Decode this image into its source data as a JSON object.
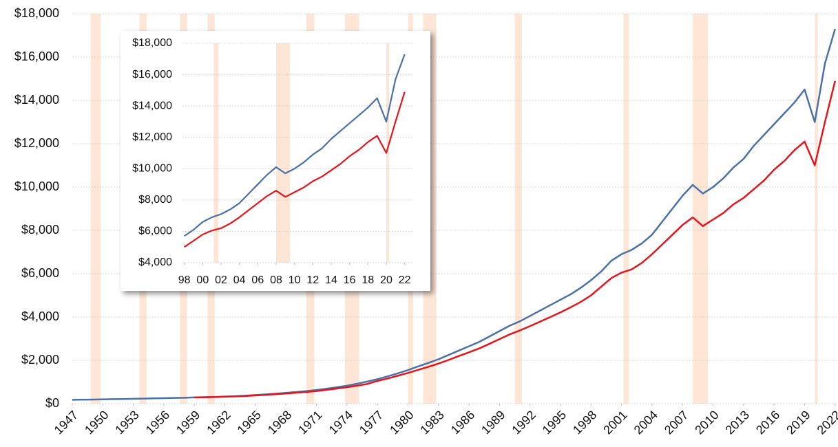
{
  "chart_data": [
    {
      "type": "line",
      "x": [
        1947,
        1948,
        1949,
        1950,
        1951,
        1952,
        1953,
        1954,
        1955,
        1956,
        1957,
        1958,
        1959,
        1960,
        1961,
        1962,
        1963,
        1964,
        1965,
        1966,
        1967,
        1968,
        1969,
        1970,
        1971,
        1972,
        1973,
        1974,
        1975,
        1976,
        1977,
        1978,
        1979,
        1980,
        1981,
        1982,
        1983,
        1984,
        1985,
        1986,
        1987,
        1988,
        1989,
        1990,
        1991,
        1992,
        1993,
        1994,
        1995,
        1996,
        1997,
        1998,
        1999,
        2000,
        2001,
        2002,
        2003,
        2004,
        2005,
        2006,
        2007,
        2008,
        2009,
        2010,
        2011,
        2012,
        2013,
        2014,
        2015,
        2016,
        2017,
        2018,
        2019,
        2020,
        2021,
        2022
      ],
      "series": [
        {
          "color": "#4a70a8",
          "values": [
            180,
            185,
            190,
            200,
            210,
            215,
            225,
            235,
            245,
            255,
            265,
            275,
            290,
            300,
            310,
            330,
            345,
            370,
            400,
            430,
            460,
            500,
            540,
            580,
            630,
            690,
            760,
            830,
            920,
            1020,
            1130,
            1260,
            1400,
            1550,
            1720,
            1880,
            2050,
            2250,
            2450,
            2650,
            2850,
            3100,
            3350,
            3600,
            3800,
            4050,
            4300,
            4550,
            4800,
            5050,
            5350,
            5700,
            6100,
            6600,
            6900,
            7100,
            7400,
            7800,
            8400,
            9000,
            9600,
            10100,
            9700,
            10000,
            10400,
            10900,
            11300,
            11900,
            12400,
            12900,
            13400,
            13900,
            14500,
            13000,
            15700,
            17300
          ]
        },
        {
          "color": "#e8141b",
          "values": [
            null,
            null,
            null,
            null,
            null,
            null,
            null,
            null,
            null,
            null,
            null,
            null,
            290,
            295,
            305,
            320,
            335,
            355,
            380,
            405,
            435,
            470,
            505,
            540,
            585,
            640,
            700,
            760,
            830,
            910,
            1050,
            1160,
            1290,
            1420,
            1560,
            1700,
            1850,
            2020,
            2200,
            2370,
            2550,
            2760,
            2980,
            3200,
            3380,
            3580,
            3790,
            4000,
            4220,
            4450,
            4700,
            5000,
            5400,
            5800,
            6050,
            6200,
            6500,
            6900,
            7350,
            7800,
            8250,
            8600,
            8200,
            8500,
            8800,
            9200,
            9500,
            9900,
            10300,
            10800,
            11200,
            11700,
            12100,
            11000,
            13000,
            14900
          ]
        }
      ],
      "recessions": [
        [
          1948.8,
          1949.8
        ],
        [
          1953.6,
          1954.3
        ],
        [
          1957.6,
          1958.3
        ],
        [
          1960.3,
          1961.0
        ],
        [
          1970.0,
          1970.8
        ],
        [
          1973.8,
          1975.2
        ],
        [
          1980.0,
          1980.5
        ],
        [
          1981.5,
          1982.8
        ],
        [
          1990.5,
          1991.2
        ],
        [
          2001.2,
          2001.7
        ],
        [
          2008.0,
          2009.5
        ],
        [
          2020.0,
          2020.3
        ]
      ],
      "recession_color": "#fde6d6",
      "xlim": [
        1947,
        2022.15
      ],
      "xticks": [
        1947,
        1950,
        1953,
        1956,
        1959,
        1962,
        1965,
        1968,
        1971,
        1974,
        1977,
        1980,
        1983,
        1986,
        1989,
        1992,
        1995,
        1998,
        2001,
        2004,
        2007,
        2010,
        2013,
        2016,
        2019,
        2022
      ],
      "ylim": [
        0,
        18000
      ],
      "yticks": [
        {
          "value": 0,
          "label": "$0"
        },
        {
          "value": 2000,
          "label": "$2,000"
        },
        {
          "value": 4000,
          "label": "$4,000"
        },
        {
          "value": 6000,
          "label": "$6,000"
        },
        {
          "value": 8000,
          "label": "$8,000"
        },
        {
          "value": 10000,
          "label": "$10,000"
        },
        {
          "value": 12000,
          "label": "$12,000"
        },
        {
          "value": 14000,
          "label": "$14,000"
        },
        {
          "value": 16000,
          "label": "$16,000"
        },
        {
          "value": 18000,
          "label": "$18,000"
        }
      ],
      "grid": true
    },
    {
      "type": "line",
      "x": [
        1998,
        1999,
        2000,
        2001,
        2002,
        2003,
        2004,
        2005,
        2006,
        2007,
        2008,
        2009,
        2010,
        2011,
        2012,
        2013,
        2014,
        2015,
        2016,
        2017,
        2018,
        2019,
        2020,
        2021,
        2022
      ],
      "series": [
        {
          "color": "#4a70a8",
          "values": [
            5700,
            6100,
            6600,
            6900,
            7100,
            7400,
            7800,
            8400,
            9000,
            9600,
            10100,
            9700,
            10000,
            10400,
            10900,
            11300,
            11900,
            12400,
            12900,
            13400,
            13900,
            14500,
            13000,
            15700,
            17300
          ]
        },
        {
          "color": "#e8141b",
          "values": [
            5000,
            5400,
            5800,
            6050,
            6200,
            6500,
            6900,
            7350,
            7800,
            8250,
            8600,
            8200,
            8500,
            8800,
            9200,
            9500,
            9900,
            10300,
            10800,
            11200,
            11700,
            12100,
            11000,
            13000,
            14900
          ]
        }
      ],
      "recessions": [
        [
          2001.2,
          2001.7
        ],
        [
          2008.0,
          2009.5
        ],
        [
          2020.0,
          2020.3
        ]
      ],
      "recession_color": "#fde6d6",
      "xlim": [
        1997.8,
        2023.0
      ],
      "xticks": [
        {
          "value": 1998,
          "label": "98"
        },
        {
          "value": 2000,
          "label": "00"
        },
        {
          "value": 2002,
          "label": "02"
        },
        {
          "value": 2004,
          "label": "04"
        },
        {
          "value": 2006,
          "label": "06"
        },
        {
          "value": 2008,
          "label": "08"
        },
        {
          "value": 2010,
          "label": "10"
        },
        {
          "value": 2012,
          "label": "12"
        },
        {
          "value": 2014,
          "label": "14"
        },
        {
          "value": 2016,
          "label": "16"
        },
        {
          "value": 2018,
          "label": "18"
        },
        {
          "value": 2020,
          "label": "20"
        },
        {
          "value": 2022,
          "label": "22"
        }
      ],
      "ylim": [
        4000,
        18000
      ],
      "yticks": [
        {
          "value": 4000,
          "label": "$4,000"
        },
        {
          "value": 6000,
          "label": "$6,000"
        },
        {
          "value": 8000,
          "label": "$8,000"
        },
        {
          "value": 10000,
          "label": "$10,000"
        },
        {
          "value": 12000,
          "label": "$12,000"
        },
        {
          "value": 14000,
          "label": "$14,000"
        },
        {
          "value": 16000,
          "label": "$16,000"
        },
        {
          "value": 18000,
          "label": "$18,000"
        }
      ],
      "grid": true
    }
  ]
}
